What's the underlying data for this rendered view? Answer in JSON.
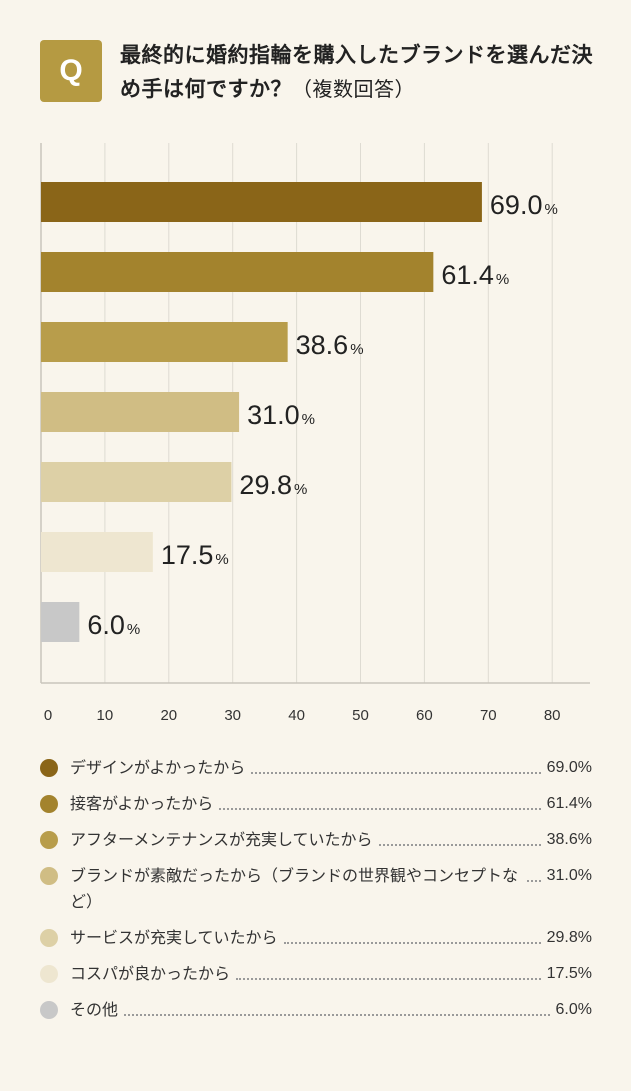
{
  "question": {
    "badge": "Q",
    "title": "最終的に婚約指輪を購入したブランドを選んだ決め手は何ですか？",
    "note": "（複数回答）"
  },
  "chart_data": {
    "type": "bar",
    "orientation": "horizontal",
    "categories": [
      "デザインがよかったから",
      "接客がよかったから",
      "アフターメンテナンスが充実していたから",
      "ブランドが素敵だったから（ブランドの世界観やコンセプトなど）",
      "サービスが充実していたから",
      "コスパが良かったから",
      "その他"
    ],
    "values": [
      69.0,
      61.4,
      38.6,
      31.0,
      29.8,
      17.5,
      6.0
    ],
    "value_labels": [
      "69.0",
      "61.4",
      "38.6",
      "31.0",
      "29.8",
      "17.5",
      "6.0"
    ],
    "unit": "%",
    "colors": [
      "#8a6518",
      "#a3832d",
      "#b89d4b",
      "#d0bd84",
      "#ddd0a6",
      "#eee6d0",
      "#c8c8c8"
    ],
    "xlim": [
      0,
      80
    ],
    "x_ticks": [
      "0",
      "10",
      "20",
      "30",
      "40",
      "50",
      "60",
      "70",
      "80"
    ],
    "grid": true
  },
  "legend": [
    {
      "label": "デザインがよかったから",
      "value": "69.0%",
      "color": "#8a6518"
    },
    {
      "label": "接客がよかったから",
      "value": "61.4%",
      "color": "#a3832d"
    },
    {
      "label": "アフターメンテナンスが充実していたから",
      "value": "38.6%",
      "color": "#b89d4b"
    },
    {
      "label": "ブランドが素敵だったから（ブランドの世界観やコンセプトなど）",
      "value": "31.0%",
      "color": "#d0bd84"
    },
    {
      "label": "サービスが充実していたから",
      "value": "29.8%",
      "color": "#ddd0a6"
    },
    {
      "label": "コスパが良かったから",
      "value": "17.5%",
      "color": "#eee6d0"
    },
    {
      "label": "その他",
      "value": "6.0%",
      "color": "#c8c8c8"
    }
  ]
}
